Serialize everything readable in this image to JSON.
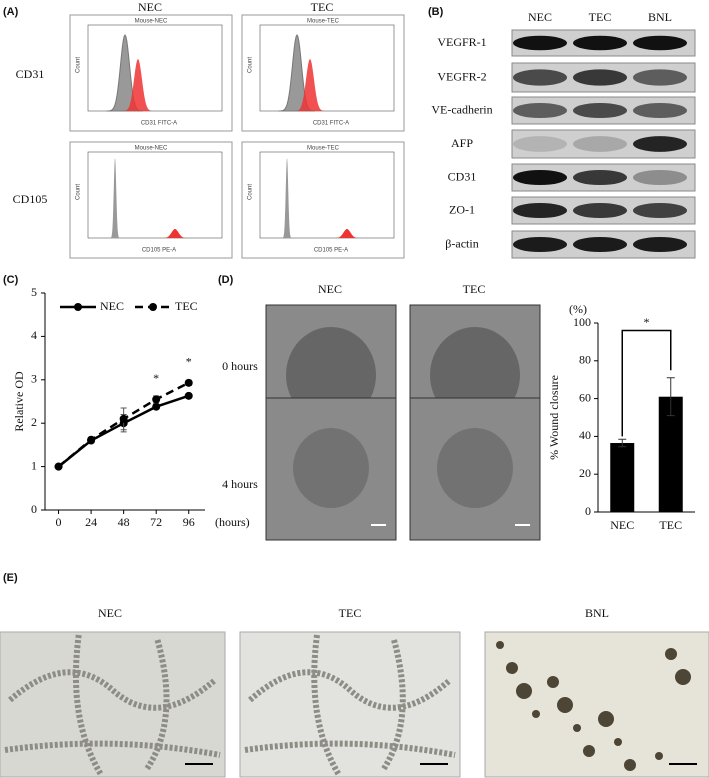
{
  "panel_a": {
    "label": "(A)",
    "columns": [
      "NEC",
      "TEC"
    ],
    "rows": [
      "CD31",
      "CD105"
    ],
    "plot_titles": [
      "Mouse-NEC",
      "Mouse-TEC"
    ],
    "x_labels": [
      "CD31 FITC-A",
      "CD105 PE-A"
    ],
    "y_label": "Count"
  },
  "panel_b": {
    "label": "(B)",
    "columns": [
      "NEC",
      "TEC",
      "BNL"
    ],
    "rows": [
      "VEGFR-1",
      "VEGFR-2",
      "VE-cadherin",
      "AFP",
      "CD31",
      "ZO-1",
      "β-actin"
    ]
  },
  "panel_d": {
    "label": "(D)",
    "columns": [
      "NEC",
      "TEC"
    ],
    "rows": [
      "0 hours",
      "4 hours"
    ]
  },
  "panel_e": {
    "label": "(E)",
    "columns": [
      "NEC",
      "TEC",
      "BNL"
    ]
  },
  "chart_data": [
    {
      "type": "line",
      "panel_label": "(C)",
      "y_label": "Relative OD",
      "x_label": "(hours)",
      "x": [
        0,
        24,
        48,
        72,
        96
      ],
      "xlim": [
        -10,
        108
      ],
      "xticks": [
        0,
        24,
        48,
        72,
        96
      ],
      "ylim": [
        0,
        5
      ],
      "yticks": [
        0,
        1,
        2,
        3,
        4,
        5
      ],
      "series": [
        {
          "name": "NEC",
          "color": "#000000",
          "dash": false,
          "values": [
            1,
            1.6,
            2.0,
            2.38,
            2.63
          ],
          "errors": [
            0.03,
            0.05,
            0.2,
            0.06,
            0.05
          ]
        },
        {
          "name": "TEC",
          "color": "#000000",
          "dash": true,
          "values": [
            1,
            1.62,
            2.1,
            2.55,
            2.93
          ],
          "errors": [
            0.03,
            0.05,
            0.25,
            0.08,
            0.06
          ]
        }
      ],
      "annotations": [
        {
          "x": 72,
          "text": "*"
        },
        {
          "x": 96,
          "text": "*"
        }
      ]
    },
    {
      "type": "bar",
      "y_unit": "(%)",
      "y_label": "% Wound closure",
      "categories": [
        "NEC",
        "TEC"
      ],
      "values": [
        36.5,
        61
      ],
      "errors": [
        2,
        10
      ],
      "color": "#000000",
      "ylim": [
        0,
        100
      ],
      "yticks": [
        0,
        20,
        40,
        60,
        80,
        100
      ],
      "annotation": "*"
    }
  ]
}
